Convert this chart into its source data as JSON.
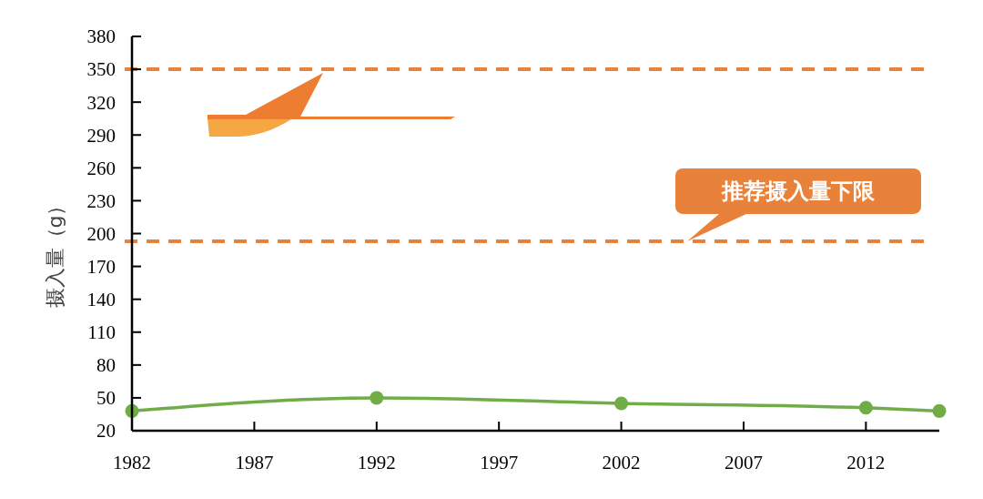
{
  "chart_data": {
    "type": "line",
    "ylabel": "摄入量（g）",
    "x": [
      1982,
      1992,
      2002,
      2012,
      2015
    ],
    "series": [
      {
        "color": "#70ad47",
        "values": [
          38,
          50,
          45,
          41,
          38
        ]
      }
    ],
    "xlim": [
      1982,
      2015
    ],
    "xticks": [
      1982,
      1987,
      1992,
      1997,
      2002,
      2007,
      2012
    ],
    "ylim": [
      20,
      380
    ],
    "yticks": [
      20,
      50,
      80,
      110,
      140,
      170,
      200,
      230,
      260,
      290,
      320,
      350,
      380
    ],
    "marker": "circle",
    "grid": false,
    "ref_lines": [
      {
        "axis": "y",
        "value": 350,
        "label": null,
        "color": "#e8813a",
        "line_style": "dashed"
      },
      {
        "axis": "y",
        "value": 193,
        "label": "推荐摄入量下限",
        "color": "#e8813a",
        "line_style": "dashed"
      }
    ]
  }
}
